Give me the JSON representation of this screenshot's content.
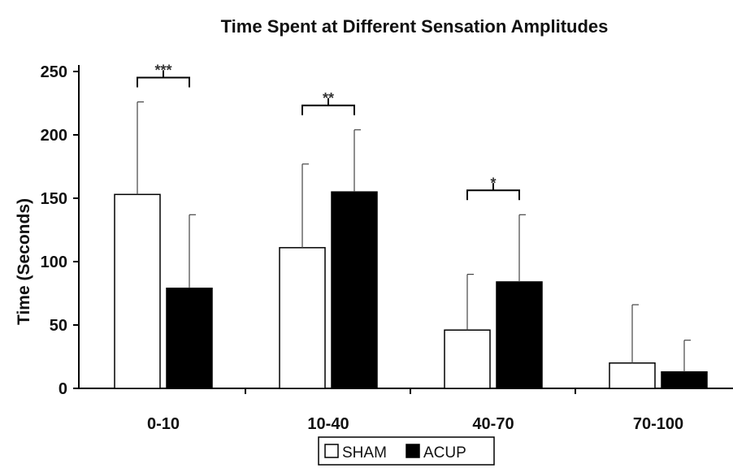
{
  "chart_data": {
    "type": "bar",
    "title": "Time Spent at Different Sensation Amplitudes",
    "xlabel": "",
    "ylabel": "Time (Seconds)",
    "ylim": [
      0,
      250
    ],
    "yticks": [
      0,
      50,
      100,
      150,
      200,
      250
    ],
    "categories": [
      "0-10",
      "10-40",
      "40-70",
      "70-100"
    ],
    "series": [
      {
        "name": "SHAM",
        "color": "#ffffff",
        "values": [
          153,
          111,
          46,
          20
        ],
        "error": [
          73,
          66,
          44,
          46
        ]
      },
      {
        "name": "ACUP",
        "color": "#000000",
        "values": [
          79,
          155,
          84,
          13
        ],
        "error": [
          58,
          49,
          53,
          25
        ]
      }
    ],
    "significance": [
      {
        "category_index": 0,
        "label": "***"
      },
      {
        "category_index": 1,
        "label": "**"
      },
      {
        "category_index": 2,
        "label": "*"
      }
    ],
    "legend_position": "bottom-center",
    "grid": false
  }
}
